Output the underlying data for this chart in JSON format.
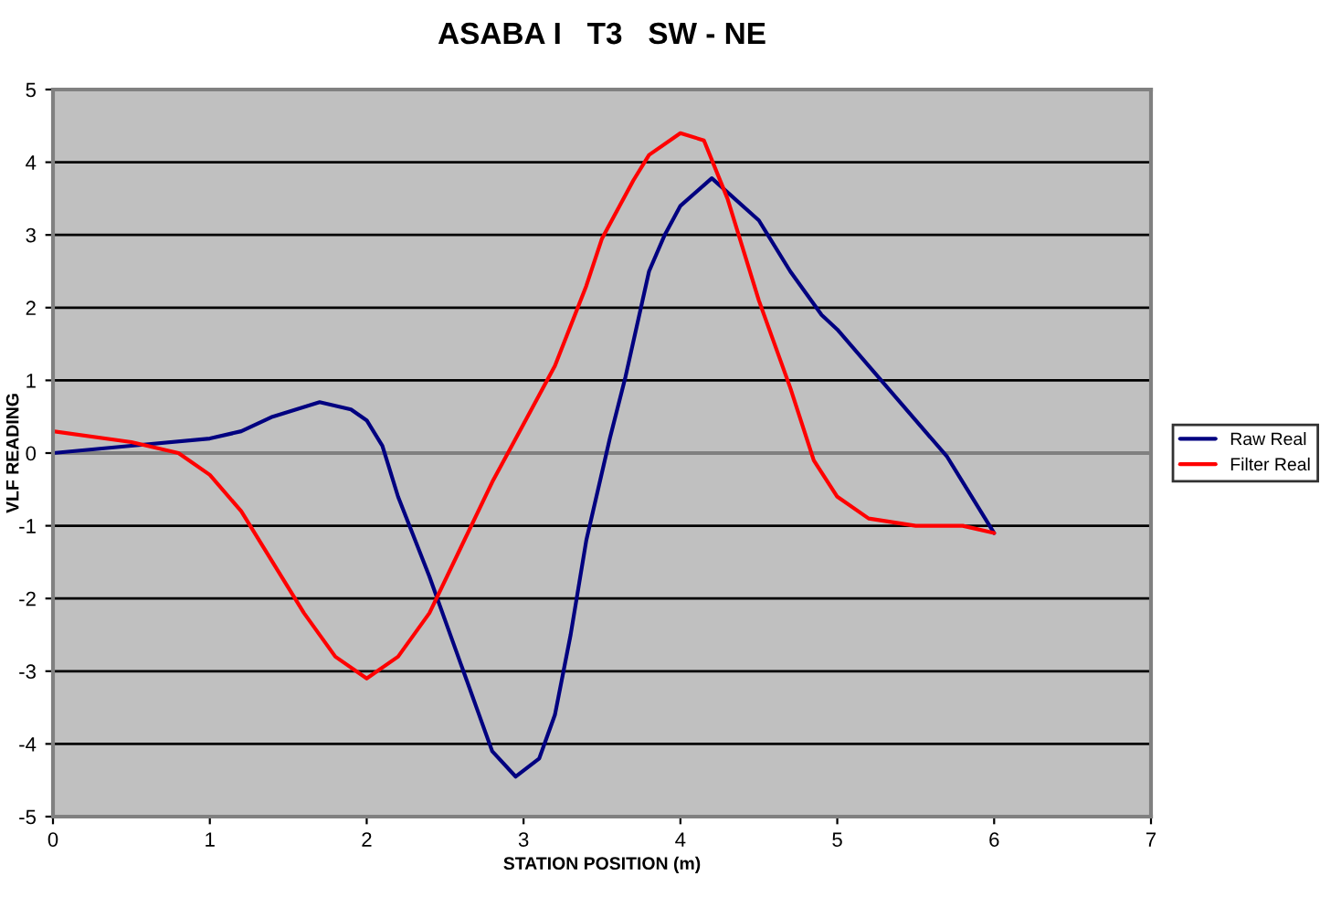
{
  "chart_data": {
    "type": "line",
    "title": "ASABA I   T3   SW - NE",
    "xlabel": "STATION POSITION (m)",
    "ylabel": "VLF READING",
    "xlim": [
      0,
      7
    ],
    "xticks": [
      0,
      1,
      2,
      3,
      4,
      5,
      6,
      7
    ],
    "ylim": [
      -5,
      5
    ],
    "yticks": [
      -5,
      -4,
      -3,
      -2,
      -1,
      0,
      1,
      2,
      3,
      4,
      5
    ],
    "grid": "y",
    "legend": "right",
    "marker": "none",
    "line_style": "solid",
    "series": [
      {
        "name": "Raw Real",
        "color": "#000080",
        "x": [
          0,
          0.5,
          1,
          1.2,
          1.4,
          1.7,
          1.9,
          2.0,
          2.1,
          2.2,
          2.4,
          2.5,
          2.6,
          2.7,
          2.8,
          2.95,
          3.1,
          3.2,
          3.3,
          3.4,
          3.55,
          3.65,
          3.8,
          3.9,
          4.0,
          4.2,
          4.5,
          4.7,
          4.9,
          5.0,
          5.3,
          5.7,
          6.0
        ],
        "values": [
          0,
          0.1,
          0.2,
          0.3,
          0.5,
          0.7,
          0.6,
          0.45,
          0.1,
          -0.6,
          -1.7,
          -2.3,
          -2.9,
          -3.5,
          -4.1,
          -4.45,
          -4.2,
          -3.6,
          -2.5,
          -1.2,
          0.2,
          1.05,
          2.5,
          3.0,
          3.4,
          3.78,
          3.2,
          2.5,
          1.9,
          1.7,
          0.95,
          -0.05,
          -1.1
        ]
      },
      {
        "name": "Filter Real",
        "color": "#ff0000",
        "x": [
          0,
          0.5,
          0.8,
          1.0,
          1.2,
          1.4,
          1.6,
          1.8,
          2.0,
          2.2,
          2.4,
          2.6,
          2.8,
          3.0,
          3.2,
          3.4,
          3.5,
          3.7,
          3.8,
          4.0,
          4.15,
          4.3,
          4.5,
          4.7,
          4.85,
          5.0,
          5.2,
          5.5,
          5.8,
          6.0
        ],
        "values": [
          0.3,
          0.15,
          0.0,
          -0.3,
          -0.8,
          -1.5,
          -2.2,
          -2.8,
          -3.1,
          -2.8,
          -2.2,
          -1.3,
          -0.4,
          0.4,
          1.2,
          2.3,
          2.95,
          3.75,
          4.1,
          4.4,
          4.3,
          3.5,
          2.1,
          0.9,
          -0.1,
          -0.6,
          -0.9,
          -1.0,
          -1.0,
          -1.1
        ]
      }
    ]
  }
}
